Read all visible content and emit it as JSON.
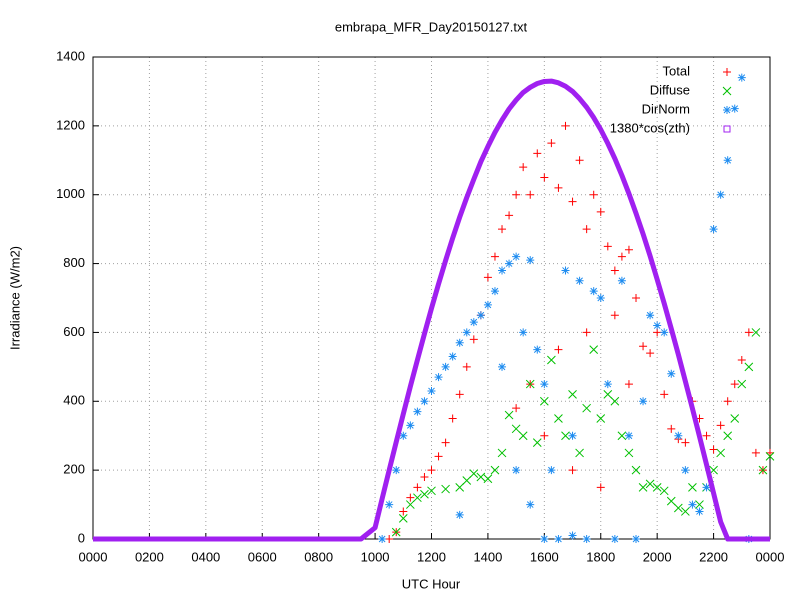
{
  "chart_data": {
    "type": "scatter",
    "title": "embrapa_MFR_Day20150127.txt",
    "x_label": "UTC Hour",
    "y_label": "Irradiance (W/m2)",
    "xlim": [
      0,
      24
    ],
    "ylim": [
      0,
      1400
    ],
    "grid": true,
    "legend": "top-right",
    "xticks": [
      {
        "value": 0,
        "label": "0000"
      },
      {
        "value": 2,
        "label": "0200"
      },
      {
        "value": 4,
        "label": "0400"
      },
      {
        "value": 6,
        "label": "0600"
      },
      {
        "value": 8,
        "label": "0800"
      },
      {
        "value": 10,
        "label": "1000"
      },
      {
        "value": 12,
        "label": "1200"
      },
      {
        "value": 14,
        "label": "1400"
      },
      {
        "value": 16,
        "label": "1600"
      },
      {
        "value": 18,
        "label": "1800"
      },
      {
        "value": 20,
        "label": "2000"
      },
      {
        "value": 22,
        "label": "2200"
      },
      {
        "value": 24,
        "label": "0000"
      }
    ],
    "yticks": [
      0,
      200,
      400,
      600,
      800,
      1000,
      1200,
      1400
    ],
    "series": [
      {
        "name": "Total",
        "color": "#ff0000",
        "marker": "plus",
        "x": [
          10.5,
          10.75,
          11,
          11.25,
          11.5,
          11.75,
          12,
          12.25,
          12.5,
          12.75,
          13,
          13.25,
          13.5,
          13.75,
          14,
          14.25,
          14.5,
          14.75,
          15,
          15.25,
          15.5,
          15.75,
          16,
          16.25,
          16.5,
          16.75,
          17,
          17.25,
          17.5,
          17.75,
          18,
          18.25,
          18.5,
          18.75,
          19,
          19.25,
          19.5,
          19.75,
          20,
          20.25,
          20.5,
          20.75,
          21,
          21.25,
          21.5,
          21.75,
          22,
          22.25,
          22.5,
          22.75,
          23,
          23.25,
          23.5,
          23.75,
          24,
          15,
          15.5,
          16,
          16.5,
          17,
          17.5,
          18,
          18.5,
          19
        ],
        "values": [
          0,
          20,
          80,
          120,
          150,
          180,
          200,
          240,
          280,
          350,
          420,
          500,
          580,
          650,
          760,
          820,
          900,
          940,
          1000,
          1080,
          1000,
          1120,
          1050,
          1150,
          1020,
          1200,
          980,
          1100,
          900,
          1000,
          950,
          850,
          780,
          820,
          840,
          700,
          560,
          540,
          600,
          420,
          320,
          290,
          280,
          400,
          350,
          300,
          260,
          330,
          400,
          450,
          520,
          600,
          250,
          200,
          250,
          380,
          450,
          300,
          550,
          200,
          600,
          150,
          650,
          450
        ]
      },
      {
        "name": "Diffuse",
        "color": "#00c000",
        "marker": "cross",
        "x": [
          10.75,
          11,
          11.25,
          11.5,
          11.75,
          12,
          12.5,
          13,
          13.25,
          13.5,
          13.75,
          14,
          14.25,
          14.5,
          14.75,
          15,
          15.25,
          15.5,
          15.75,
          16,
          16.25,
          16.5,
          16.75,
          17,
          17.25,
          17.5,
          17.75,
          18,
          18.25,
          18.5,
          18.75,
          19,
          19.25,
          19.5,
          19.75,
          20,
          20.25,
          20.5,
          20.75,
          21,
          21.25,
          21.5,
          21.75,
          22,
          22.25,
          22.5,
          22.75,
          23,
          23.25,
          23.5,
          23.75,
          24
        ],
        "values": [
          20,
          60,
          100,
          120,
          130,
          140,
          145,
          150,
          170,
          190,
          180,
          175,
          200,
          250,
          360,
          320,
          300,
          450,
          280,
          400,
          520,
          350,
          300,
          420,
          250,
          380,
          550,
          350,
          420,
          400,
          300,
          250,
          200,
          150,
          160,
          150,
          140,
          110,
          90,
          80,
          150,
          100,
          150,
          200,
          250,
          300,
          350,
          450,
          500,
          600,
          200,
          240
        ]
      },
      {
        "name": "DirNorm",
        "color": "#1e8cf0",
        "marker": "star",
        "x": [
          10.25,
          10.5,
          10.75,
          11,
          11.25,
          11.5,
          11.75,
          12,
          12.25,
          12.5,
          12.75,
          13,
          13.25,
          13.5,
          13.75,
          14,
          14.25,
          14.5,
          14.75,
          15,
          15.25,
          15.5,
          15.75,
          16,
          16.25,
          16.5,
          16.75,
          17,
          17.25,
          17.5,
          17.75,
          18,
          18.25,
          18.5,
          18.75,
          19,
          19.25,
          19.5,
          19.75,
          20,
          20.25,
          20.5,
          20.75,
          21,
          21.25,
          21.5,
          21.75,
          22,
          22.25,
          22.5,
          22.75,
          23,
          23.25,
          13,
          14.5,
          15,
          15.5,
          16,
          17
        ],
        "values": [
          0,
          100,
          200,
          300,
          330,
          370,
          400,
          430,
          470,
          500,
          530,
          570,
          600,
          630,
          650,
          680,
          720,
          780,
          800,
          820,
          600,
          810,
          550,
          450,
          200,
          0,
          780,
          300,
          750,
          0,
          720,
          700,
          450,
          0,
          750,
          300,
          0,
          400,
          650,
          620,
          600,
          480,
          300,
          200,
          100,
          80,
          150,
          900,
          1000,
          1100,
          1250,
          1340,
          0,
          70,
          500,
          200,
          100,
          0,
          10
        ]
      },
      {
        "name": "1380*cos(zth)",
        "color": "#a020f0",
        "marker": "square",
        "x": [
          0,
          0.5,
          1,
          1.5,
          2,
          2.5,
          3,
          3.5,
          4,
          4.5,
          5,
          5.5,
          6,
          6.5,
          7,
          7.5,
          8,
          8.5,
          9,
          9.5,
          10,
          10.25,
          10.5,
          10.75,
          11,
          11.25,
          11.5,
          11.75,
          12,
          12.25,
          12.5,
          12.75,
          13,
          13.25,
          13.5,
          13.75,
          14,
          14.25,
          14.5,
          14.75,
          15,
          15.25,
          15.5,
          15.75,
          16,
          16.25,
          16.5,
          16.75,
          17,
          17.25,
          17.5,
          17.75,
          18,
          18.25,
          18.5,
          18.75,
          19,
          19.25,
          19.5,
          19.75,
          20,
          20.25,
          20.5,
          20.75,
          21,
          21.25,
          21.5,
          21.75,
          22,
          22.25,
          22.5,
          23,
          23.5,
          24
        ],
        "values": [
          0,
          0,
          0,
          0,
          0,
          0,
          0,
          0,
          0,
          0,
          0,
          0,
          0,
          0,
          0,
          0,
          0,
          0,
          0,
          0,
          33,
          117,
          200,
          282,
          363,
          443,
          520,
          596,
          670,
          741,
          809,
          874,
          935,
          992,
          1045,
          1096,
          1140,
          1181,
          1217,
          1249,
          1275,
          1297,
          1312,
          1323,
          1329,
          1330,
          1325,
          1315,
          1300,
          1279,
          1254,
          1224,
          1189,
          1149,
          1105,
          1056,
          1003,
          946,
          886,
          822,
          754,
          684,
          611,
          536,
          458,
          379,
          298,
          216,
          133,
          50,
          0,
          0,
          0,
          0
        ]
      }
    ]
  }
}
